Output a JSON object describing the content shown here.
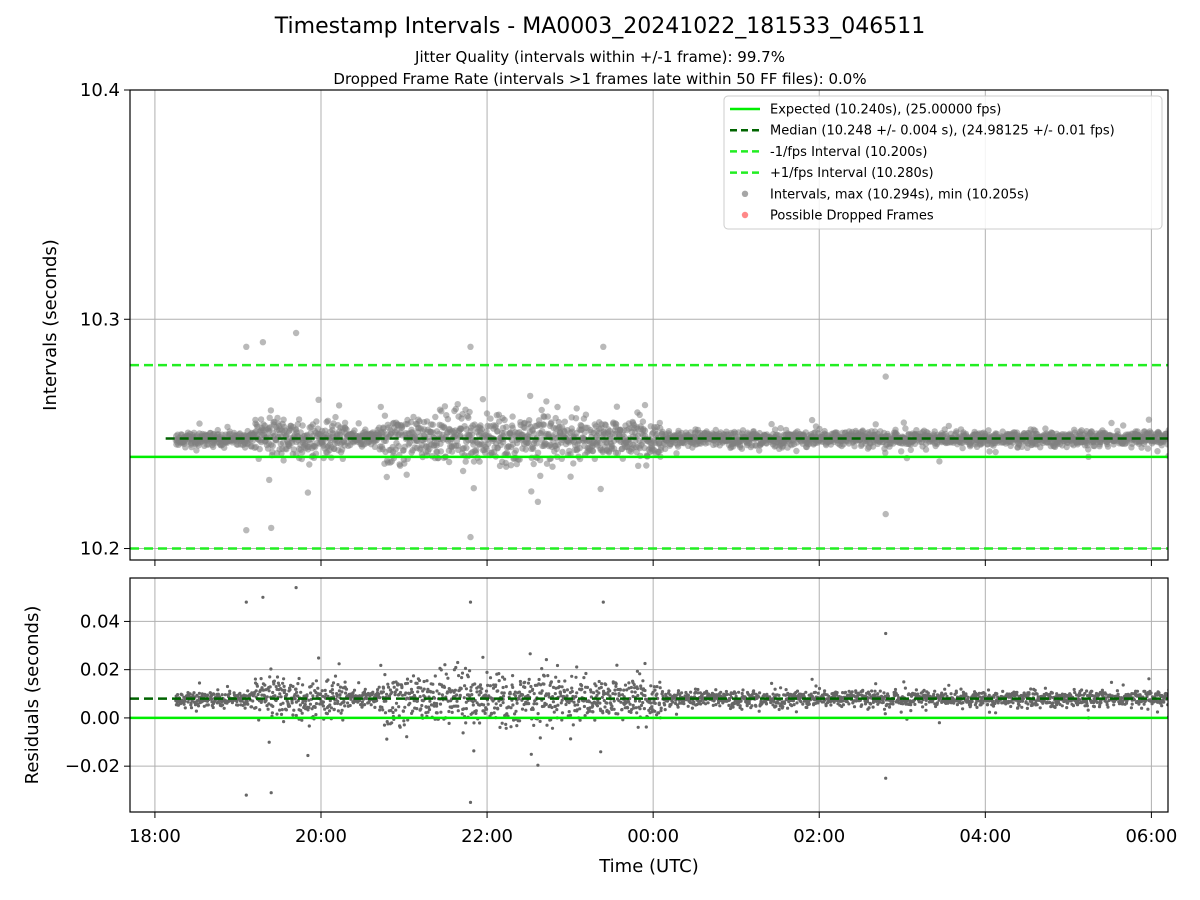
{
  "colors": {
    "expected": "#00ee00",
    "median": "#006400",
    "fps_bounds": "#22ee22",
    "intervals": "#808080",
    "residuals": "#666666",
    "dropped": "#ff5555",
    "grid": "#b0b0b0"
  },
  "chart_data": [
    {
      "type": "scatter",
      "title": "Timestamp Intervals - MA0003_20241022_181533_046511",
      "subtitle_lines": [
        "Jitter Quality (intervals within +/-1 frame): 99.7%",
        "Dropped Frame Rate (intervals >1 frames late within 50 FF files): 0.0%"
      ],
      "xlabel": "",
      "ylabel": "Intervals (seconds)",
      "x_range_hours": [
        17.7,
        30.2
      ],
      "ylim": [
        10.195,
        10.4
      ],
      "yticks": [
        10.2,
        10.3,
        10.4
      ],
      "ytick_labels": [
        "10.2",
        "10.3",
        "10.4"
      ],
      "xticks_hours": [
        18,
        20,
        22,
        24,
        26,
        28,
        30
      ],
      "xtick_labels": [
        "18:00",
        "20:00",
        "22:00",
        "00:00",
        "02:00",
        "04:00",
        "06:00"
      ],
      "grid": true,
      "legend_position": "top-right",
      "reference_lines": [
        {
          "name": "Expected (10.240s), (25.00000 fps)",
          "y": 10.24,
          "style": "solid"
        },
        {
          "name": "Median (10.248 +/- 0.004 s), (24.98125 +/- 0.01 fps)",
          "y": 10.248,
          "style": "dashed"
        },
        {
          "name": "-1/fps Interval (10.200s)",
          "y": 10.2,
          "style": "dashed"
        },
        {
          "name": "+1/fps Interval (10.280s)",
          "y": 10.28,
          "style": "dashed"
        }
      ],
      "series": [
        {
          "name": "Intervals, max (10.294s), min (10.205s)",
          "marker": "circle",
          "x_start": "18:15",
          "x_end": "06:15",
          "max": 10.294,
          "min": 10.205,
          "notable_points": [
            {
              "x": "19:06",
              "y": 10.288
            },
            {
              "x": "19:18",
              "y": 10.29
            },
            {
              "x": "19:42",
              "y": 10.294
            },
            {
              "x": "21:48",
              "y": 10.288
            },
            {
              "x": "23:24",
              "y": 10.288
            },
            {
              "x": "19:06",
              "y": 10.208
            },
            {
              "x": "19:24",
              "y": 10.209
            },
            {
              "x": "21:48",
              "y": 10.205
            },
            {
              "x": "02:48",
              "y": 10.275
            },
            {
              "x": "02:48",
              "y": 10.215
            }
          ]
        },
        {
          "name": "Possible Dropped Frames",
          "marker": "circle",
          "count": 0
        }
      ]
    },
    {
      "type": "scatter",
      "xlabel": "Time (UTC)",
      "ylabel": "Residuals (seconds)",
      "x_range_hours": [
        17.7,
        30.2
      ],
      "ylim": [
        -0.039,
        0.058
      ],
      "yticks": [
        -0.02,
        0.0,
        0.02,
        0.04
      ],
      "ytick_labels": [
        "−0.02",
        "0.00",
        "0.02",
        "0.04"
      ],
      "xticks_hours": [
        18,
        20,
        22,
        24,
        26,
        28,
        30
      ],
      "xtick_labels": [
        "18:00",
        "20:00",
        "22:00",
        "00:00",
        "02:00",
        "04:00",
        "06:00"
      ],
      "grid": true,
      "reference_lines": [
        {
          "y": 0.0,
          "style": "solid"
        },
        {
          "y": 0.008,
          "style": "dashed"
        }
      ],
      "series": [
        {
          "marker": "dot",
          "x_start": "18:15",
          "x_end": "06:15",
          "max": 0.054,
          "min": -0.035
        }
      ]
    }
  ]
}
